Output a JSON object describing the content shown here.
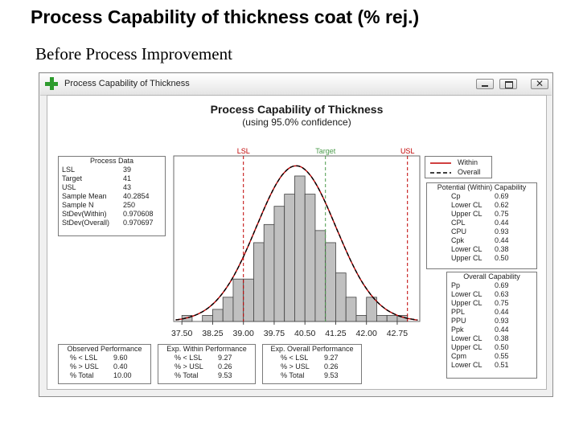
{
  "slide": {
    "title": "Process Capability of thickness coat (% rej.)",
    "subtitle": "Before Process Improvement"
  },
  "window": {
    "title": "Process Capability of Thickness",
    "icon": "plus-icon",
    "buttons": [
      "minimize-icon",
      "maximize-icon",
      "close-icon"
    ]
  },
  "colors": {
    "bars": "#c0c0c0",
    "within_curve": "#c00000",
    "overall_curve": "#000000",
    "spec_lines": "#c00000",
    "target_line": "#4b9b4b",
    "lsl_label": "#c00000",
    "target_label": "#4b9b4b",
    "usl_label": "#c00000"
  },
  "chart_data": {
    "type": "bar",
    "title": "Process Capability of Thickness",
    "subtitle": "(using 95.0% confidence)",
    "xlim": [
      37.3,
      43.3
    ],
    "x_ticks": [
      "37.50",
      "38.25",
      "39.00",
      "39.75",
      "40.50",
      "41.25",
      "42.00",
      "42.75"
    ],
    "x_tick_values": [
      37.5,
      38.25,
      39.0,
      39.75,
      40.5,
      41.25,
      42.0,
      42.75
    ],
    "bin_width": 0.25,
    "bins": [
      {
        "start": 37.5,
        "height": 1
      },
      {
        "start": 37.75,
        "height": 0
      },
      {
        "start": 38.0,
        "height": 1
      },
      {
        "start": 38.25,
        "height": 2
      },
      {
        "start": 38.5,
        "height": 4
      },
      {
        "start": 38.75,
        "height": 7
      },
      {
        "start": 39.0,
        "height": 7
      },
      {
        "start": 39.25,
        "height": 13
      },
      {
        "start": 39.5,
        "height": 16
      },
      {
        "start": 39.75,
        "height": 19
      },
      {
        "start": 40.0,
        "height": 21
      },
      {
        "start": 40.25,
        "height": 24
      },
      {
        "start": 40.5,
        "height": 21
      },
      {
        "start": 40.75,
        "height": 15
      },
      {
        "start": 41.0,
        "height": 13
      },
      {
        "start": 41.25,
        "height": 8
      },
      {
        "start": 41.5,
        "height": 4
      },
      {
        "start": 41.75,
        "height": 1
      },
      {
        "start": 42.0,
        "height": 4
      },
      {
        "start": 42.25,
        "height": 1
      },
      {
        "start": 42.5,
        "height": 1
      },
      {
        "start": 42.75,
        "height": 1
      }
    ],
    "spec_lines": [
      {
        "label": "LSL",
        "value": 39
      },
      {
        "label": "Target",
        "value": 41
      },
      {
        "label": "USL",
        "value": 43
      }
    ],
    "curves": [
      {
        "name": "Within",
        "mean": 40.2854,
        "stdev": 0.970608,
        "style": "solid"
      },
      {
        "name": "Overall",
        "mean": 40.2854,
        "stdev": 0.970697,
        "style": "dashed"
      }
    ],
    "legend": [
      "Within",
      "Overall"
    ],
    "legend_position": "top-right"
  },
  "process_data": {
    "title": "Process Data",
    "rows": [
      {
        "label": "LSL",
        "value": "39"
      },
      {
        "label": "Target",
        "value": "41"
      },
      {
        "label": "USL",
        "value": "43"
      },
      {
        "label": "Sample Mean",
        "value": "40.2854"
      },
      {
        "label": "Sample N",
        "value": "250"
      },
      {
        "label": "StDev(Within)",
        "value": "0.970608"
      },
      {
        "label": "StDev(Overall)",
        "value": "0.970697"
      }
    ]
  },
  "potential_capability": {
    "title": "Potential (Within) Capability",
    "rows": [
      {
        "label": "Cp",
        "value": "0.69"
      },
      {
        "label": "Lower CL",
        "value": "0.62"
      },
      {
        "label": "Upper CL",
        "value": "0.75"
      },
      {
        "label": "CPL",
        "value": "0.44"
      },
      {
        "label": "CPU",
        "value": "0.93"
      },
      {
        "label": "Cpk",
        "value": "0.44"
      },
      {
        "label": "Lower CL",
        "value": "0.38"
      },
      {
        "label": "Upper CL",
        "value": "0.50"
      }
    ]
  },
  "overall_capability": {
    "title": "Overall Capability",
    "rows": [
      {
        "label": "Pp",
        "value": "0.69"
      },
      {
        "label": "Lower CL",
        "value": "0.63"
      },
      {
        "label": "Upper CL",
        "value": "0.75"
      },
      {
        "label": "PPL",
        "value": "0.44"
      },
      {
        "label": "PPU",
        "value": "0.93"
      },
      {
        "label": "Ppk",
        "value": "0.44"
      },
      {
        "label": "Lower CL",
        "value": "0.38"
      },
      {
        "label": "Upper CL",
        "value": "0.50"
      },
      {
        "label": "Cpm",
        "value": "0.55"
      },
      {
        "label": "Lower CL",
        "value": "0.51"
      }
    ]
  },
  "observed_performance": {
    "title": "Observed Performance",
    "rows": [
      {
        "label": "% < LSL",
        "value": "9.60"
      },
      {
        "label": "% > USL",
        "value": "0.40"
      },
      {
        "label": "% Total",
        "value": "10.00"
      }
    ]
  },
  "exp_within_performance": {
    "title": "Exp. Within Performance",
    "rows": [
      {
        "label": "% < LSL",
        "value": "9.27"
      },
      {
        "label": "% > USL",
        "value": "0.26"
      },
      {
        "label": "% Total",
        "value": "9.53"
      }
    ]
  },
  "exp_overall_performance": {
    "title": "Exp. Overall Performance",
    "rows": [
      {
        "label": "% < LSL",
        "value": "9.27"
      },
      {
        "label": "% > USL",
        "value": "0.26"
      },
      {
        "label": "% Total",
        "value": "9.53"
      }
    ]
  }
}
